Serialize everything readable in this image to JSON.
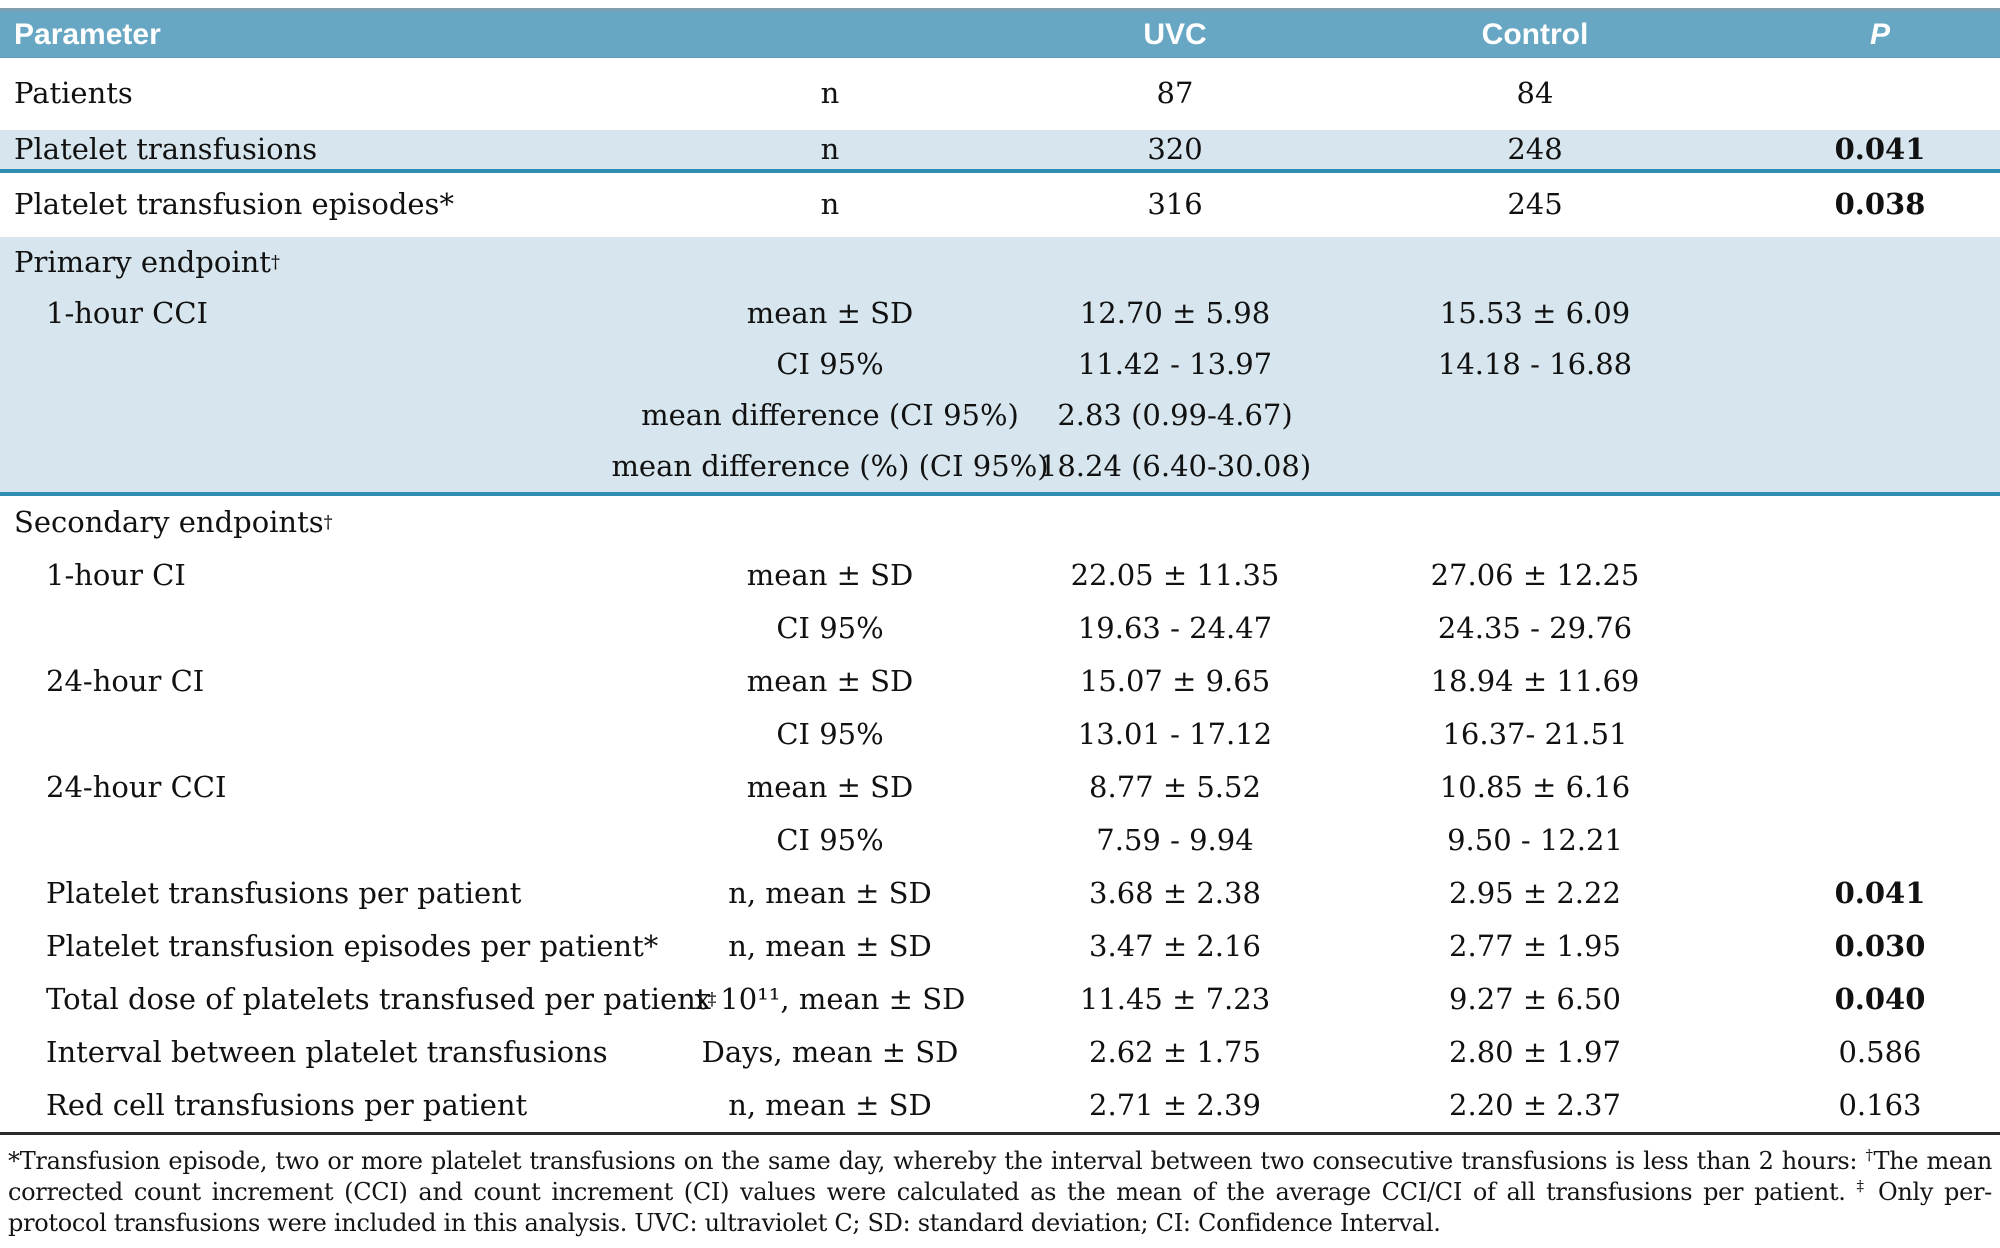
{
  "header": {
    "parameter": "Parameter",
    "group_label": "",
    "uvc": "UVC",
    "control": "Control",
    "p": "P"
  },
  "rows": [
    {
      "param": "Patients",
      "measure": "n",
      "uvc": "87",
      "control": "84",
      "p": ""
    },
    {
      "param": "Platelet transfusions",
      "measure": "n",
      "uvc": "320",
      "control": "248",
      "p": "0.041"
    },
    {
      "param": "Platelet transfusion episodes*",
      "measure": "n",
      "uvc": "316",
      "control": "245",
      "p": "0.038"
    },
    {
      "param": "Primary endpoint†"
    },
    {
      "param": "1-hour CCI",
      "measure": "mean ± SD",
      "uvc": "12.70 ± 5.98",
      "control": "15.53 ± 6.09",
      "p": ""
    },
    {
      "param": "",
      "measure": "CI 95%",
      "uvc": "11.42 - 13.97",
      "control": "14.18 - 16.88",
      "p": ""
    },
    {
      "param": "",
      "measure": "mean difference (CI 95%)",
      "uvc": "2.83 (0.99-4.67)",
      "control": "",
      "p": ""
    },
    {
      "param": "",
      "measure": "mean difference (%) (CI 95%)",
      "uvc": "18.24 (6.40-30.08)",
      "control": "",
      "p": ""
    },
    {
      "param": "Secondary endpoints†"
    },
    {
      "param": "1-hour CI",
      "measure": "mean ± SD",
      "uvc": "22.05 ± 11.35",
      "control": "27.06 ± 12.25",
      "p": ""
    },
    {
      "param": "",
      "measure": "CI 95%",
      "uvc": "19.63 - 24.47",
      "control": "24.35 - 29.76",
      "p": ""
    },
    {
      "param": "24-hour CI",
      "measure": "mean ± SD",
      "uvc": "15.07 ± 9.65",
      "control": "18.94 ± 11.69",
      "p": ""
    },
    {
      "param": "",
      "measure": "CI 95%",
      "uvc": "13.01 - 17.12",
      "control": "16.37- 21.51",
      "p": ""
    },
    {
      "param": "24-hour CCI",
      "measure": "mean ± SD",
      "uvc": "8.77 ± 5.52",
      "control": "10.85 ± 6.16",
      "p": ""
    },
    {
      "param": "",
      "measure": "CI 95%",
      "uvc": "7.59 - 9.94",
      "control": "9.50 - 12.21",
      "p": ""
    },
    {
      "param": "Platelet transfusions per patient",
      "measure": "n, mean ± SD",
      "uvc": "3.68 ± 2.38",
      "control": "2.95 ± 2.22",
      "p": "0.041"
    },
    {
      "param": "Platelet transfusion episodes per patient*",
      "measure": "n, mean ± SD",
      "uvc": "3.47 ± 2.16",
      "control": "2.77 ± 1.95",
      "p": "0.030"
    },
    {
      "param": "Total dose of platelets transfused per patient‡",
      "measure": "x 10¹¹, mean ± SD",
      "uvc": "11.45 ± 7.23",
      "control": "9.27 ± 6.50",
      "p": "0.040"
    },
    {
      "param": "Interval between platelet transfusions",
      "measure": "Days, mean ± SD",
      "uvc": "2.62 ± 1.75",
      "control": "2.80 ± 1.97",
      "p": "0.586"
    },
    {
      "param": "Red cell transfusions per patient",
      "measure": "n, mean ± SD",
      "uvc": "2.71 ± 2.39",
      "control": "2.20 ± 2.37",
      "p": "0.163"
    }
  ],
  "footnote": {
    "text": "*Transfusion episode, two or more platelet transfusions on the same day, whereby the interval between two consecutive transfusions is less than 2 hours: †The mean corrected count increment (CCI) and count increment (CI) values were calculated as the mean of the average CCI/CI of all transfusions per patient. ‡ Only per-protocol transfusions were included in this analysis. UVC: ultraviolet C; SD: standard deviation; CI: Confidence Interval."
  },
  "colors": {
    "header_bg": "#67a7c3",
    "highlight_bg": "#d7e6ee",
    "accent_rule": "#2e8fb2"
  }
}
